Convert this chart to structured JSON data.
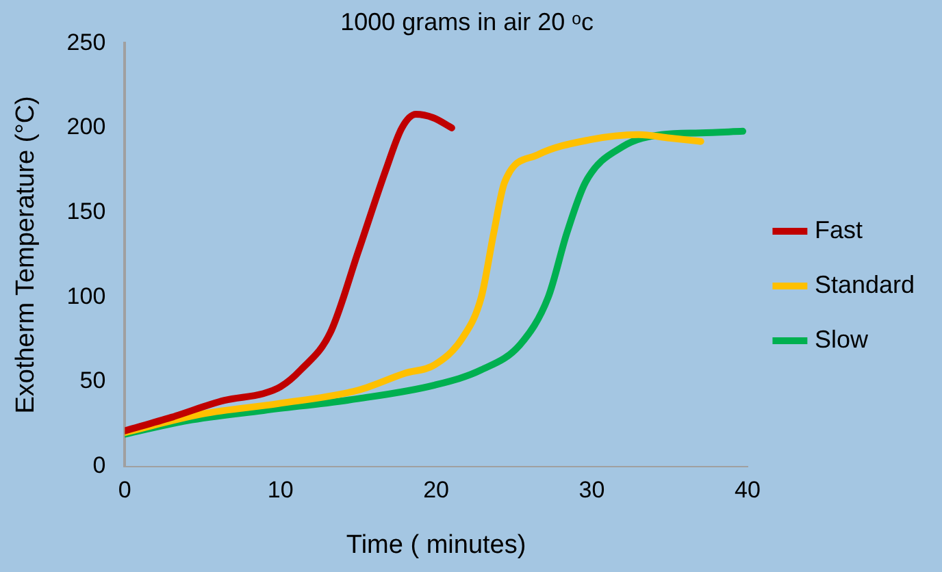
{
  "chart_data": {
    "type": "line",
    "title": "1000 grams in air 20 ᵒc",
    "xlabel": "Time ( minutes)",
    "ylabel": "Exotherm Temperature (°C)",
    "xlim": [
      0,
      40
    ],
    "xticks": [
      0,
      10,
      20,
      30,
      40
    ],
    "ylim": [
      0,
      250
    ],
    "yticks": [
      0,
      50,
      100,
      150,
      200,
      250
    ],
    "grid": false,
    "legend": "right",
    "marker": "none",
    "line_style": "solid",
    "series": [
      {
        "name": "Fast",
        "color": "#c00000",
        "x": [
          0,
          3,
          6.4,
          8.9,
          10,
          11.3,
          13.2,
          15,
          16.8,
          17.8,
          18.7,
          19.8,
          21
        ],
        "values": [
          21,
          29,
          39,
          43,
          47,
          57,
          79,
          127,
          176,
          200,
          208,
          206,
          200
        ]
      },
      {
        "name": "Standard",
        "color": "#ffc000",
        "x": [
          0,
          5,
          9.8,
          15,
          18,
          19.9,
          21.7,
          22.9,
          23.7,
          24.4,
          26.5,
          29.9,
          33,
          35,
          37
        ],
        "values": [
          20,
          31,
          37,
          45,
          55,
          60,
          76,
          100,
          138,
          168,
          184,
          193,
          196,
          194,
          192
        ]
      },
      {
        "name": "Slow",
        "color": "#00b050",
        "x": [
          0,
          4,
          8.9,
          15,
          19.9,
          22.9,
          25.4,
          27.2,
          28.4,
          29.6,
          32,
          34.5,
          37,
          39.7
        ],
        "values": [
          19,
          27,
          33,
          40,
          48,
          57,
          72,
          100,
          138,
          168,
          189,
          196,
          197,
          198
        ]
      }
    ]
  }
}
